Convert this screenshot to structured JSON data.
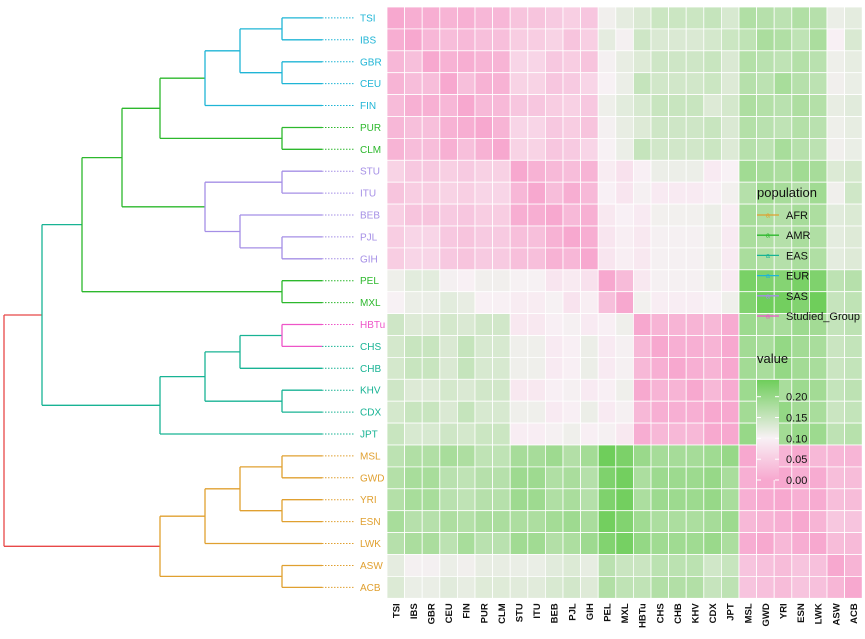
{
  "chart_data": {
    "type": "heatmap",
    "rows": [
      "TSI",
      "IBS",
      "GBR",
      "CEU",
      "FIN",
      "PUR",
      "CLM",
      "STU",
      "ITU",
      "BEB",
      "PJL",
      "GIH",
      "PEL",
      "MXL",
      "HBTu",
      "CHS",
      "CHB",
      "KHV",
      "CDX",
      "JPT",
      "MSL",
      "GWD",
      "YRI",
      "ESN",
      "LWK",
      "ASW",
      "ACB"
    ],
    "columns": [
      "TSI",
      "IBS",
      "GBR",
      "CEU",
      "FIN",
      "PUR",
      "CLM",
      "STU",
      "ITU",
      "BEB",
      "PJL",
      "GIH",
      "PEL",
      "MXL",
      "HBTu",
      "CHS",
      "CHB",
      "KHV",
      "CDX",
      "JPT",
      "MSL",
      "GWD",
      "YRI",
      "ESN",
      "LWK",
      "ASW",
      "ACB"
    ],
    "row_population": {
      "TSI": "EUR",
      "IBS": "EUR",
      "GBR": "EUR",
      "CEU": "EUR",
      "FIN": "EUR",
      "PUR": "AMR",
      "CLM": "AMR",
      "STU": "SAS",
      "ITU": "SAS",
      "BEB": "SAS",
      "PJL": "SAS",
      "GIH": "SAS",
      "PEL": "AMR",
      "MXL": "AMR",
      "HBTu": "Studied_Group",
      "CHS": "EAS",
      "CHB": "EAS",
      "KHV": "EAS",
      "CDX": "EAS",
      "JPT": "EAS",
      "MSL": "AFR",
      "GWD": "AFR",
      "YRI": "AFR",
      "ESN": "AFR",
      "LWK": "AFR",
      "ASW": "AFR",
      "ACB": "AFR"
    },
    "block_values": {
      "E-E": 0.02,
      "E-S": 0.05,
      "E-P": 0.11,
      "E-A": 0.14,
      "E-F": 0.17,
      "E-W": 0.11,
      "E-C": 0.12,
      "S-S": 0.02,
      "S-P": 0.09,
      "S-A": 0.1,
      "S-F": 0.18,
      "S-W": 0.12,
      "S-C": 0.13,
      "P-P": 0.02,
      "P-A": 0.1,
      "P-F": 0.23,
      "P-W": 0.16,
      "P-C": 0.17,
      "A-A": 0.01,
      "A-F": 0.19,
      "A-W": 0.15,
      "A-C": 0.16,
      "F-F": 0.01,
      "F-W": 0.03,
      "F-C": 0.03,
      "W-W": 0.01,
      "W-C": 0.01,
      "C-C": 0.01
    },
    "scale": {
      "min": 0.0,
      "max": 0.24,
      "mid": 0.1,
      "low_color": "#f7a8cf",
      "mid_color": "#f8f1f5",
      "high_color": "#6fce5b"
    },
    "tree_colors": {
      "AFR": "#e0a030",
      "AMR": "#2db82d",
      "EAS": "#18b394",
      "EUR": "#1fb5d6",
      "SAS": "#a58fe6",
      "Studied_Group": "#ee55c8",
      "root": "#e84848"
    },
    "legend_population": {
      "title": "population",
      "items": [
        "AFR",
        "AMR",
        "EAS",
        "EUR",
        "SAS",
        "Studied_Group"
      ]
    },
    "legend_value": {
      "title": "value",
      "ticks": [
        "0.20",
        "0.15",
        "0.10",
        "0.05",
        "0.00"
      ],
      "tick_values": [
        0.2,
        0.15,
        0.1,
        0.05,
        0.0
      ]
    }
  }
}
